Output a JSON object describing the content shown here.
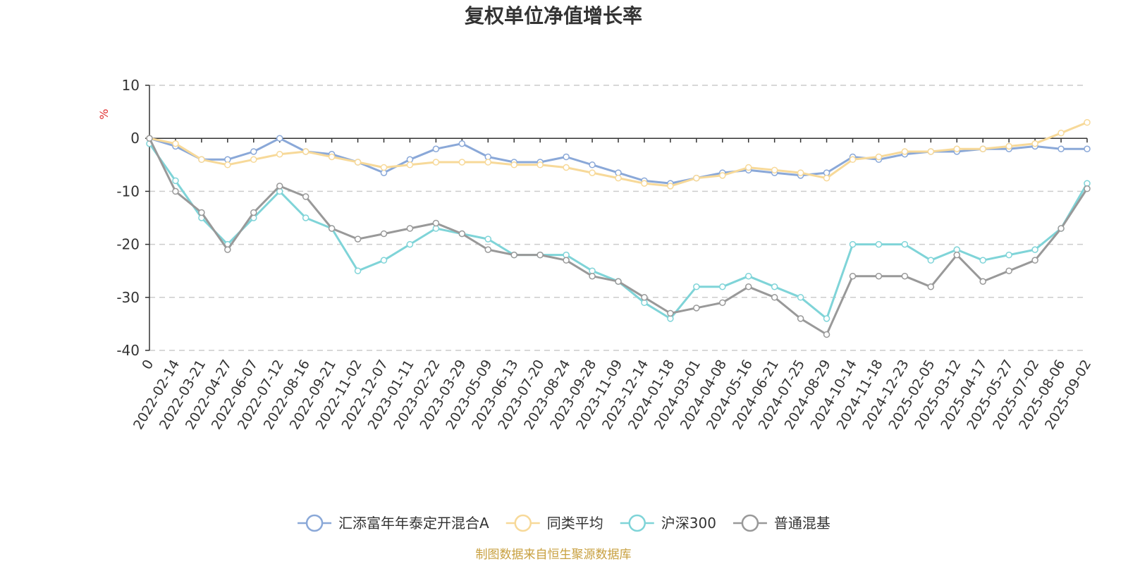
{
  "chart_data": {
    "type": "line",
    "title": "复权单位净值增长率",
    "ylabel": "%",
    "ylim": [
      -40,
      10
    ],
    "y_ticks": [
      10,
      0,
      -10,
      -20,
      -30,
      -40
    ],
    "grid": true,
    "legend_position": "bottom",
    "source_note": "制图数据来自恒生聚源数据库",
    "x_labels": [
      "0",
      "2022-02-14",
      "2022-03-21",
      "2022-04-27",
      "2022-06-07",
      "2022-07-12",
      "2022-08-16",
      "2022-09-21",
      "2022-11-02",
      "2022-12-07",
      "2023-01-11",
      "2023-02-22",
      "2023-03-29",
      "2023-05-09",
      "2023-06-13",
      "2023-07-20",
      "2023-08-24",
      "2023-09-28",
      "2023-11-09",
      "2023-12-14",
      "2024-01-18",
      "2024-03-01",
      "2024-04-08",
      "2024-05-16",
      "2024-06-21",
      "2024-07-25",
      "2024-08-29",
      "2024-10-14",
      "2024-11-18",
      "2024-12-23",
      "2025-02-05",
      "2025-03-12",
      "2025-04-17",
      "2025-05-27",
      "2025-07-02",
      "2025-08-06",
      "2025-09-02"
    ],
    "series": [
      {
        "name": "汇添富年年泰定开混合A",
        "color": "#8aa8d8",
        "values": [
          0,
          -1.5,
          -4,
          -4,
          -2.5,
          0,
          -2.5,
          -3,
          -4.5,
          -6.5,
          -4,
          -2,
          -1,
          -3.5,
          -4.5,
          -4.5,
          -3.5,
          -5,
          -6.5,
          -8,
          -8.5,
          -7.5,
          -6.5,
          -6,
          -6.5,
          -7,
          -6.5,
          -3.5,
          -4,
          -3,
          -2.5,
          -2.5,
          -2,
          -2,
          -1.5,
          -2,
          -2
        ]
      },
      {
        "name": "同类平均",
        "color": "#f7d999",
        "values": [
          0,
          -1,
          -4,
          -5,
          -4,
          -3,
          -2.5,
          -3.5,
          -4.5,
          -5.5,
          -5,
          -4.5,
          -4.5,
          -4.5,
          -5,
          -5,
          -5.5,
          -6.5,
          -7.5,
          -8.5,
          -9,
          -7.5,
          -7,
          -5.5,
          -6,
          -6.5,
          -7.5,
          -4,
          -3.5,
          -2.5,
          -2.5,
          -2,
          -2,
          -1.5,
          -1,
          1,
          3
        ]
      },
      {
        "name": "沪深300",
        "color": "#7fd4d8",
        "values": [
          -1,
          -8,
          -15,
          -20,
          -15,
          -10,
          -15,
          -17,
          -25,
          -23,
          -20,
          -17,
          -18,
          -19,
          -22,
          -22,
          -22,
          -25,
          -27,
          -31,
          -34,
          -28,
          -28,
          -26,
          -28,
          -30,
          -34,
          -20,
          -20,
          -20,
          -23,
          -21,
          -23,
          -22,
          -21,
          -17,
          -8.5
        ]
      },
      {
        "name": "普通混基",
        "color": "#999999",
        "values": [
          0,
          -10,
          -14,
          -21,
          -14,
          -9,
          -11,
          -17,
          -19,
          -18,
          -17,
          -16,
          -18,
          -21,
          -22,
          -22,
          -23,
          -26,
          -27,
          -30,
          -33,
          -32,
          -31,
          -28,
          -30,
          -34,
          -37,
          -26,
          -26,
          -26,
          -28,
          -22,
          -27,
          -25,
          -23,
          -17,
          -9.5
        ]
      }
    ]
  }
}
